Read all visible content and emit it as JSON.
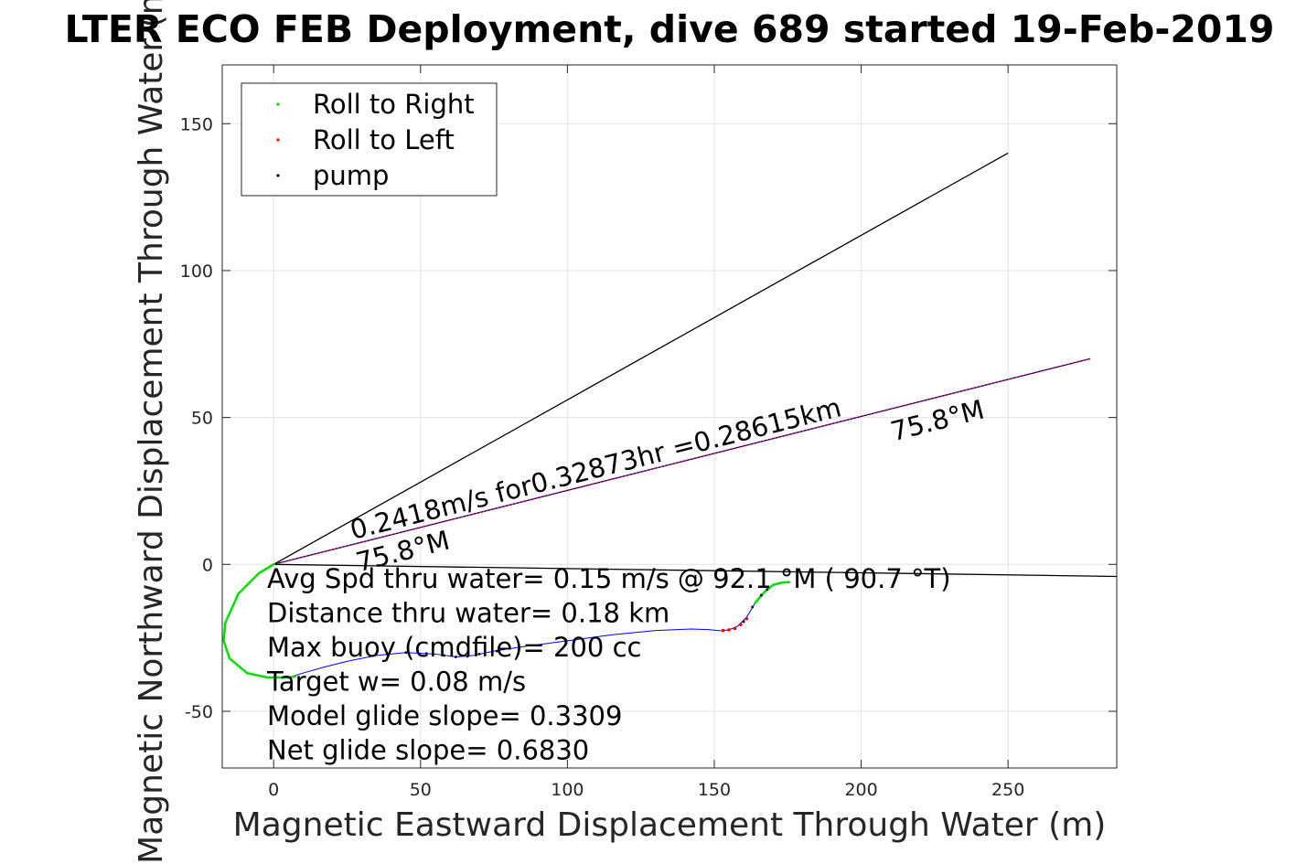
{
  "chart_data": {
    "type": "line",
    "title": "LTER ECO FEB Deployment, dive 689 started 19-Feb-2019",
    "xlabel": "Magnetic Eastward Displacement Through Water (m)",
    "ylabel": "Magnetic Northward Displacement Through Water (m)",
    "xlim": [
      -17.5,
      287
    ],
    "ylim": [
      -69.3,
      170
    ],
    "xticks": [
      0,
      50,
      100,
      150,
      200,
      250
    ],
    "xtick_labels": [
      "0",
      "50",
      "100",
      "150",
      "200",
      "250"
    ],
    "yticks": [
      -50,
      0,
      50,
      100,
      150
    ],
    "ytick_labels": [
      "-50",
      "0",
      "50",
      "100",
      "150"
    ],
    "grid": true,
    "legend_position": "top-left",
    "legend": [
      {
        "label": "Roll to Right",
        "color": "#00dd00"
      },
      {
        "label": "Roll to Left",
        "color": "#ff0000"
      },
      {
        "label": "pump",
        "color": "#000000"
      }
    ],
    "lines": [
      {
        "color": "#000000",
        "points": [
          [
            0,
            0
          ],
          [
            250,
            140
          ]
        ]
      },
      {
        "color": "#000000",
        "points": [
          [
            0,
            0
          ],
          [
            287,
            -4.1
          ]
        ]
      },
      {
        "color": "#000000",
        "points": [
          [
            0,
            0
          ],
          [
            278,
            70
          ]
        ]
      },
      {
        "color": "#cc00cc",
        "dashed": true,
        "points": [
          [
            0,
            0
          ],
          [
            278,
            70
          ]
        ]
      }
    ],
    "track": {
      "color": "#0000ff",
      "points": [
        [
          0,
          0
        ],
        [
          -5,
          -3
        ],
        [
          -12,
          -10
        ],
        [
          -16.5,
          -20
        ],
        [
          -17,
          -26
        ],
        [
          -15,
          -32
        ],
        [
          -9,
          -37
        ],
        [
          -2,
          -38.5
        ],
        [
          5,
          -38.5
        ],
        [
          10,
          -37
        ],
        [
          17,
          -35
        ],
        [
          25,
          -33
        ],
        [
          35,
          -31
        ],
        [
          45,
          -30
        ],
        [
          55,
          -30.5
        ],
        [
          62,
          -31.5
        ],
        [
          68,
          -31
        ],
        [
          75,
          -29.5
        ],
        [
          85,
          -28
        ],
        [
          100,
          -26
        ],
        [
          115,
          -24
        ],
        [
          130,
          -22.5
        ],
        [
          142,
          -22
        ],
        [
          148,
          -22.2
        ],
        [
          152,
          -22.6
        ],
        [
          155,
          -22.3
        ],
        [
          158,
          -21
        ],
        [
          161,
          -18
        ],
        [
          164,
          -13
        ],
        [
          167,
          -9.5
        ],
        [
          170,
          -7
        ],
        [
          173,
          -6.2
        ],
        [
          176,
          -6
        ]
      ]
    },
    "roll_right_segments": [
      [
        [
          0,
          0
        ],
        [
          -5,
          -3
        ],
        [
          -12,
          -10
        ],
        [
          -16.5,
          -20
        ],
        [
          -17,
          -26
        ],
        [
          -15,
          -32
        ],
        [
          -9,
          -37
        ],
        [
          -2,
          -38.5
        ],
        [
          5,
          -38.5
        ],
        [
          8,
          -38
        ]
      ],
      [
        [
          164,
          -13
        ],
        [
          167,
          -9.5
        ],
        [
          170,
          -7
        ],
        [
          173,
          -6.2
        ],
        [
          176,
          -6
        ]
      ]
    ],
    "roll_left_points": [
      [
        153,
        -22.5
      ],
      [
        155,
        -22.3
      ],
      [
        157,
        -21.8
      ],
      [
        159,
        -20.5
      ],
      [
        161,
        -18.5
      ]
    ],
    "pump_points": [
      [
        45,
        -30
      ],
      [
        52,
        -30.3
      ],
      [
        58,
        -31
      ],
      [
        62,
        -31.5
      ],
      [
        66,
        -31.3
      ],
      [
        70,
        -30.5
      ],
      [
        76,
        -29.5
      ],
      [
        160,
        -19.5
      ],
      [
        163,
        -14.5
      ],
      [
        166,
        -10.5
      ],
      [
        168,
        -8.5
      ]
    ],
    "annotations": [
      {
        "text": "0.2418m/s for0.32873hr =0.28615km",
        "x": 27,
        "y": 8.5,
        "angle": -14.2
      },
      {
        "text": "75.8°M",
        "x": 29,
        "y": -2.5,
        "angle": -14.2
      },
      {
        "text": "75.8°M",
        "x": 211,
        "y": 42,
        "angle": -14.2
      }
    ],
    "info_text": [
      "Avg Spd thru water=  0.15 m/s @  92.1 °M ( 90.7 °T)",
      "Distance thru water=  0.18 km",
      "Max buoy (cmdfile)= 200 cc",
      "Target w= 0.08 m/s",
      "Model glide slope= 0.3309",
      "Net glide slope= 0.6830"
    ]
  }
}
